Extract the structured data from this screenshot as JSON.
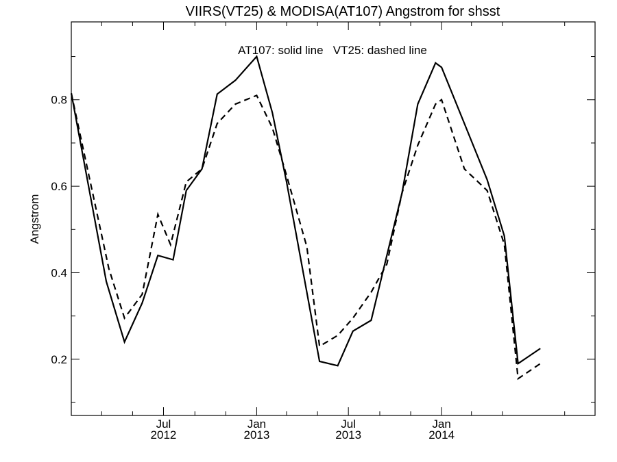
{
  "chart_data": {
    "type": "line",
    "title": "VIIRS(VT25) & MODISA(AT107)  Angstrom for shsst",
    "annotation": "AT107: solid line   VT25: dashed line",
    "xlabel": "",
    "ylabel": "Angstrom",
    "ylim": [
      0.07,
      0.98
    ],
    "xlim": [
      "2012-01-01",
      "2014-10-31"
    ],
    "grid": false,
    "legend": "none",
    "y_ticks": [
      {
        "value": 0.2,
        "label": "0.2"
      },
      {
        "value": 0.4,
        "label": "0.4"
      },
      {
        "value": 0.6,
        "label": "0.6"
      },
      {
        "value": 0.8,
        "label": "0.8"
      }
    ],
    "y_minor_ticks": [
      0.1,
      0.3,
      0.5,
      0.7,
      0.9
    ],
    "x_ticks": [
      {
        "date": "2012-07-01",
        "month": "Jul",
        "year": "2012"
      },
      {
        "date": "2013-01-01",
        "month": "Jan",
        "year": "2013"
      },
      {
        "date": "2013-07-01",
        "month": "Jul",
        "year": "2013"
      },
      {
        "date": "2014-01-01",
        "month": "Jan",
        "year": "2014"
      }
    ],
    "x_minor_ticks": [
      "2012-03-01",
      "2012-05-01",
      "2012-09-01",
      "2012-11-01",
      "2013-03-01",
      "2013-05-01",
      "2013-09-01",
      "2013-11-01",
      "2014-03-01",
      "2014-05-01",
      "2014-09-01"
    ],
    "series": [
      {
        "name": "AT107",
        "style": "solid",
        "color": "#000000",
        "points": [
          [
            "2012-01-01",
            0.815
          ],
          [
            "2012-03-10",
            0.38
          ],
          [
            "2012-04-15",
            0.24
          ],
          [
            "2012-05-20",
            0.33
          ],
          [
            "2012-06-20",
            0.44
          ],
          [
            "2012-07-20",
            0.43
          ],
          [
            "2012-08-15",
            0.59
          ],
          [
            "2012-09-15",
            0.64
          ],
          [
            "2012-10-15",
            0.813
          ],
          [
            "2012-11-20",
            0.845
          ],
          [
            "2013-01-01",
            0.9
          ],
          [
            "2013-02-01",
            0.77
          ],
          [
            "2013-03-01",
            0.61
          ],
          [
            "2013-05-05",
            0.195
          ],
          [
            "2013-06-10",
            0.185
          ],
          [
            "2013-07-10",
            0.265
          ],
          [
            "2013-08-15",
            0.29
          ],
          [
            "2013-09-15",
            0.44
          ],
          [
            "2013-10-15",
            0.585
          ],
          [
            "2013-11-15",
            0.79
          ],
          [
            "2013-12-20",
            0.885
          ],
          [
            "2014-01-01",
            0.875
          ],
          [
            "2014-02-15",
            0.745
          ],
          [
            "2014-04-01",
            0.615
          ],
          [
            "2014-05-05",
            0.485
          ],
          [
            "2014-06-01",
            0.19
          ],
          [
            "2014-07-15",
            0.225
          ]
        ]
      },
      {
        "name": "VT25",
        "style": "dashed",
        "color": "#000000",
        "points": [
          [
            "2012-01-01",
            0.815
          ],
          [
            "2012-03-15",
            0.41
          ],
          [
            "2012-04-15",
            0.295
          ],
          [
            "2012-05-20",
            0.35
          ],
          [
            "2012-06-20",
            0.535
          ],
          [
            "2012-07-15",
            0.465
          ],
          [
            "2012-08-15",
            0.61
          ],
          [
            "2012-09-15",
            0.64
          ],
          [
            "2012-10-15",
            0.745
          ],
          [
            "2012-11-20",
            0.79
          ],
          [
            "2013-01-01",
            0.81
          ],
          [
            "2013-02-01",
            0.735
          ],
          [
            "2013-03-01",
            0.625
          ],
          [
            "2013-04-10",
            0.46
          ],
          [
            "2013-05-05",
            0.23
          ],
          [
            "2013-06-10",
            0.255
          ],
          [
            "2013-07-10",
            0.295
          ],
          [
            "2013-08-15",
            0.355
          ],
          [
            "2013-09-15",
            0.42
          ],
          [
            "2013-10-15",
            0.585
          ],
          [
            "2013-11-15",
            0.695
          ],
          [
            "2013-12-20",
            0.79
          ],
          [
            "2014-01-01",
            0.8
          ],
          [
            "2014-02-15",
            0.64
          ],
          [
            "2014-04-01",
            0.59
          ],
          [
            "2014-05-05",
            0.465
          ],
          [
            "2014-06-01",
            0.155
          ],
          [
            "2014-07-15",
            0.19
          ]
        ]
      }
    ]
  }
}
